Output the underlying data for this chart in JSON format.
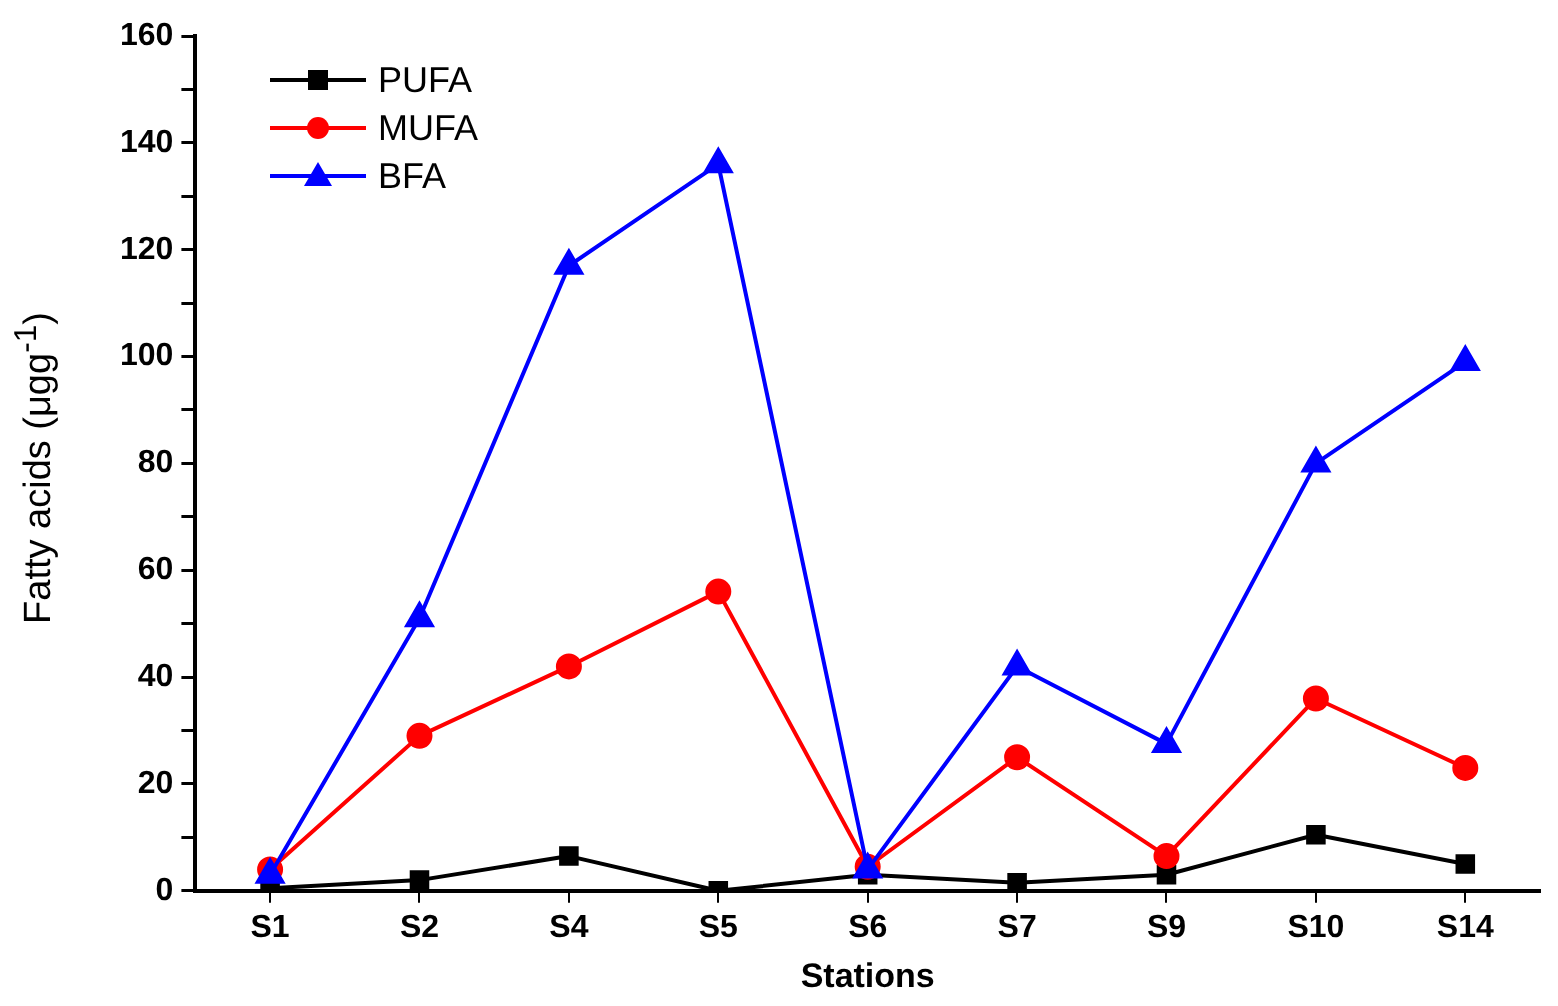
{
  "chart_data": {
    "type": "line",
    "xlabel": "Stations",
    "ylabel": "Fatty acids (μgg$^{-1}$)",
    "categories": [
      "S1",
      "S2",
      "S4",
      "S5",
      "S6",
      "S7",
      "S9",
      "S10",
      "S14"
    ],
    "series": [
      {
        "name": "PUFA",
        "color": "#000000",
        "marker": "square",
        "values": [
          0.5,
          2,
          6.5,
          0,
          3,
          1.5,
          3,
          10.5,
          5
        ]
      },
      {
        "name": "MUFA",
        "color": "#ff0000",
        "marker": "circle",
        "values": [
          4,
          29,
          42,
          56,
          4.5,
          25,
          6.5,
          36,
          23
        ]
      },
      {
        "name": "BFA",
        "color": "#0000ff",
        "marker": "triangle",
        "values": [
          3,
          51,
          117,
          136,
          4,
          42,
          27.5,
          80,
          99
        ]
      }
    ],
    "ylim": [
      0,
      160
    ],
    "yticks": [
      0,
      {
        "value": 10,
        "label": null
      },
      20,
      {
        "value": 30,
        "label": null
      },
      40,
      {
        "value": 50,
        "label": null
      },
      60,
      {
        "value": 70,
        "label": null
      },
      80,
      {
        "value": 90,
        "label": null
      },
      100,
      {
        "value": 110,
        "label": null
      },
      120,
      {
        "value": 130,
        "label": null
      },
      140,
      {
        "value": 150,
        "label": null
      },
      160
    ],
    "legend": "top left",
    "grid": false
  }
}
